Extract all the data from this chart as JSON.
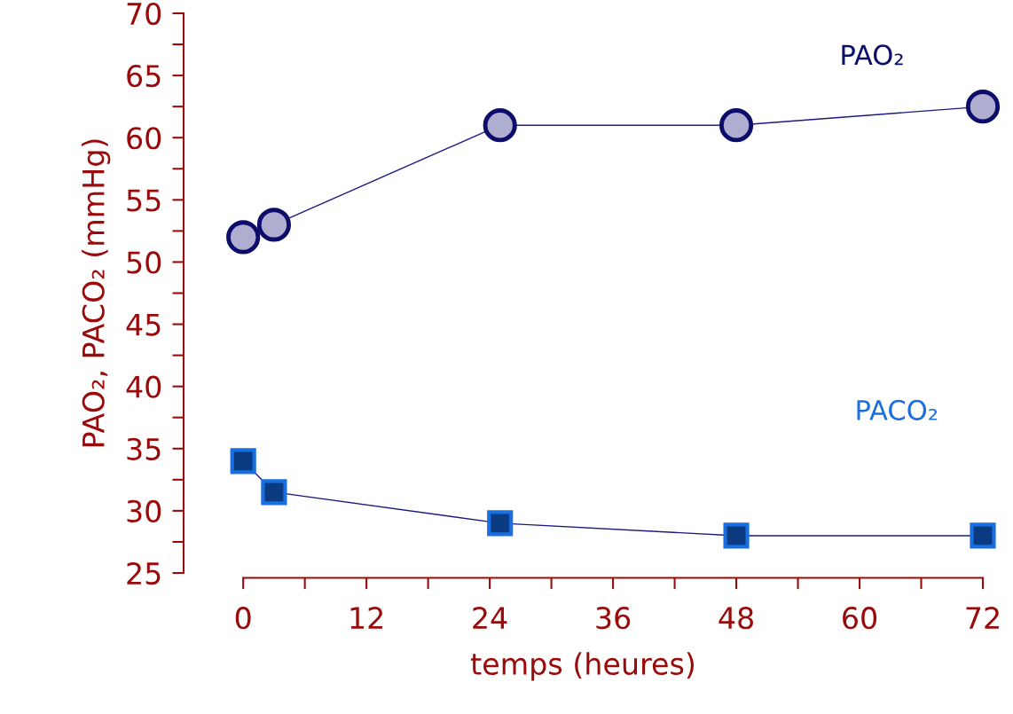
{
  "chart_data": {
    "type": "line",
    "xlabel": "temps (heures)",
    "ylabel": "PAO₂, PACO₂ (mmHg)",
    "xlim": [
      -5.8,
      72
    ],
    "ylim": [
      25,
      70
    ],
    "xticks": [
      0,
      {
        "value": 6,
        "label": null
      },
      12,
      {
        "value": 18,
        "label": null
      },
      24,
      {
        "value": 30,
        "label": null
      },
      36,
      {
        "value": 42,
        "label": null
      },
      48,
      {
        "value": 54,
        "label": null
      },
      60,
      {
        "value": 66,
        "label": null
      },
      72
    ],
    "yticks": [
      25,
      {
        "value": 27.5,
        "label": null
      },
      30,
      {
        "value": 32.5,
        "label": null
      },
      35,
      {
        "value": 37.5,
        "label": null
      },
      40,
      {
        "value": 42.5,
        "label": null
      },
      45,
      {
        "value": 47.5,
        "label": null
      },
      50,
      {
        "value": 52.5,
        "label": null
      },
      55,
      {
        "value": 57.5,
        "label": null
      },
      60,
      {
        "value": 62.5,
        "label": null
      },
      65,
      {
        "value": 67.5,
        "label": null
      },
      70
    ],
    "grid": false,
    "legend": false,
    "line_style": "solid",
    "x": [
      0,
      3,
      25,
      48,
      72
    ],
    "series": [
      {
        "name": "PAO₂",
        "color": "#0c0c6a",
        "marker": "circle",
        "values": [
          52,
          53,
          61,
          61,
          62.5
        ]
      },
      {
        "name": "PACO₂",
        "color": "#1a6fe0",
        "marker": "square",
        "values": [
          34,
          31.5,
          29,
          28,
          28
        ]
      }
    ]
  }
}
